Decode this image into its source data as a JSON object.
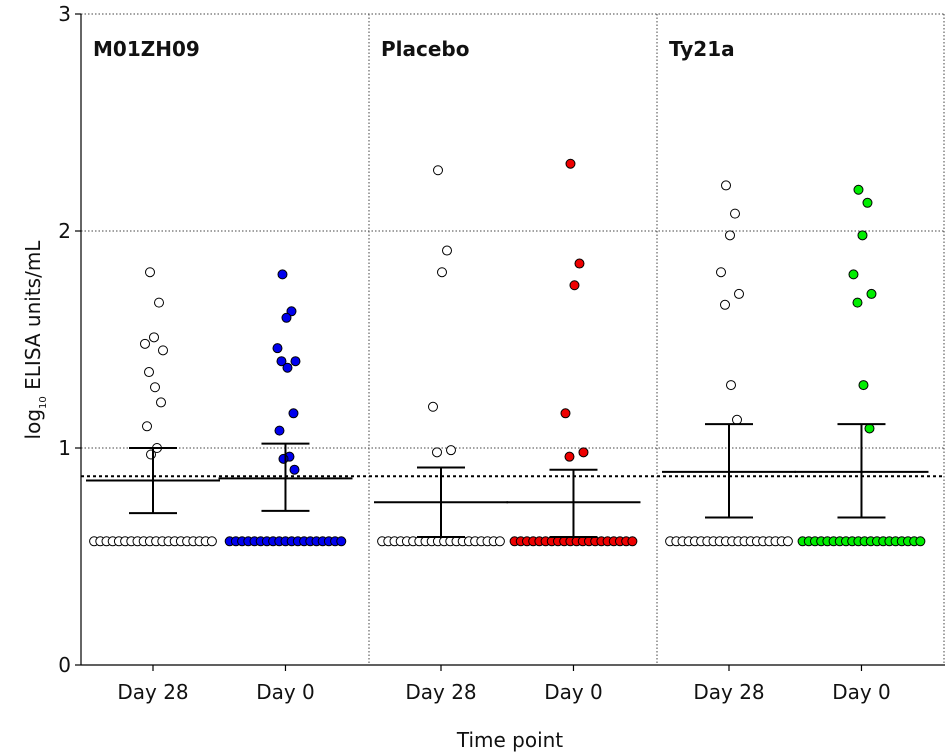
{
  "chart_data": {
    "type": "scatter",
    "ylabel": "log₁₀ ELISA units/mL",
    "ylabel_parts": {
      "prefix": "log",
      "subscript": "10",
      "suffix": " ELISA units/mL"
    },
    "xlabel": "Time point",
    "ylim": [
      0,
      3
    ],
    "y_ticks": [
      "0",
      "1",
      "2",
      "3"
    ],
    "threshold_y": 0.87,
    "grid": "horizontal dotted at 1, 2, 3; vertical dotted panel dividers",
    "colors": {
      "M01ZH09": "#0000ee",
      "Placebo": "#ee0000",
      "Ty21a": "#00ee00",
      "open": "#ffffff",
      "outline": "#000000"
    },
    "groups": [
      {
        "name": "M01ZH09",
        "series": [
          {
            "label": "Day 28",
            "filled": false,
            "fill": "#ffffff",
            "summary": {
              "mean": 0.85,
              "ci_low": 0.7,
              "ci_high": 1.0
            },
            "values": [
              1.81,
              1.67,
              1.51,
              1.48,
              1.45,
              1.35,
              1.28,
              1.21,
              1.1,
              1.0,
              0.97,
              0.57,
              0.57,
              0.57,
              0.57,
              0.57,
              0.57,
              0.57,
              0.57,
              0.57,
              0.57,
              0.57,
              0.57,
              0.57,
              0.57,
              0.57,
              0.57,
              0.57,
              0.57,
              0.57,
              0.57
            ]
          },
          {
            "label": "Day 0",
            "filled": true,
            "fill": "#0000ee",
            "summary": {
              "mean": 0.86,
              "ci_low": 0.71,
              "ci_high": 1.02
            },
            "values": [
              1.8,
              1.63,
              1.6,
              1.46,
              1.4,
              1.4,
              1.37,
              1.16,
              1.08,
              0.96,
              0.95,
              0.9,
              0.57,
              0.57,
              0.57,
              0.57,
              0.57,
              0.57,
              0.57,
              0.57,
              0.57,
              0.57,
              0.57,
              0.57,
              0.57,
              0.57,
              0.57,
              0.57,
              0.57,
              0.57,
              0.57
            ]
          }
        ]
      },
      {
        "name": "Placebo",
        "series": [
          {
            "label": "Day 28",
            "filled": false,
            "fill": "#ffffff",
            "summary": {
              "mean": 0.75,
              "ci_low": 0.59,
              "ci_high": 0.91
            },
            "values": [
              2.28,
              1.91,
              1.81,
              1.19,
              0.99,
              0.98,
              0.57,
              0.57,
              0.57,
              0.57,
              0.57,
              0.57,
              0.57,
              0.57,
              0.57,
              0.57,
              0.57,
              0.57,
              0.57,
              0.57,
              0.57,
              0.57,
              0.57,
              0.57,
              0.57,
              0.57
            ]
          },
          {
            "label": "Day 0",
            "filled": true,
            "fill": "#ee0000",
            "summary": {
              "mean": 0.75,
              "ci_low": 0.59,
              "ci_high": 0.9
            },
            "values": [
              2.31,
              1.85,
              1.75,
              1.16,
              0.98,
              0.96,
              0.57,
              0.57,
              0.57,
              0.57,
              0.57,
              0.57,
              0.57,
              0.57,
              0.57,
              0.57,
              0.57,
              0.57,
              0.57,
              0.57,
              0.57,
              0.57,
              0.57,
              0.57,
              0.57,
              0.57
            ]
          }
        ]
      },
      {
        "name": "Ty21a",
        "series": [
          {
            "label": "Day 28",
            "filled": false,
            "fill": "#ffffff",
            "summary": {
              "mean": 0.89,
              "ci_low": 0.68,
              "ci_high": 1.11
            },
            "values": [
              2.21,
              2.08,
              1.98,
              1.81,
              1.71,
              1.66,
              1.29,
              1.13,
              0.57,
              0.57,
              0.57,
              0.57,
              0.57,
              0.57,
              0.57,
              0.57,
              0.57,
              0.57,
              0.57,
              0.57,
              0.57,
              0.57,
              0.57,
              0.57,
              0.57,
              0.57,
              0.57,
              0.57
            ]
          },
          {
            "label": "Day 0",
            "filled": true,
            "fill": "#00ee00",
            "summary": {
              "mean": 0.89,
              "ci_low": 0.68,
              "ci_high": 1.11
            },
            "values": [
              2.19,
              2.13,
              1.98,
              1.8,
              1.71,
              1.67,
              1.29,
              1.09,
              0.57,
              0.57,
              0.57,
              0.57,
              0.57,
              0.57,
              0.57,
              0.57,
              0.57,
              0.57,
              0.57,
              0.57,
              0.57,
              0.57,
              0.57,
              0.57,
              0.57,
              0.57,
              0.57,
              0.57
            ]
          }
        ]
      }
    ]
  }
}
